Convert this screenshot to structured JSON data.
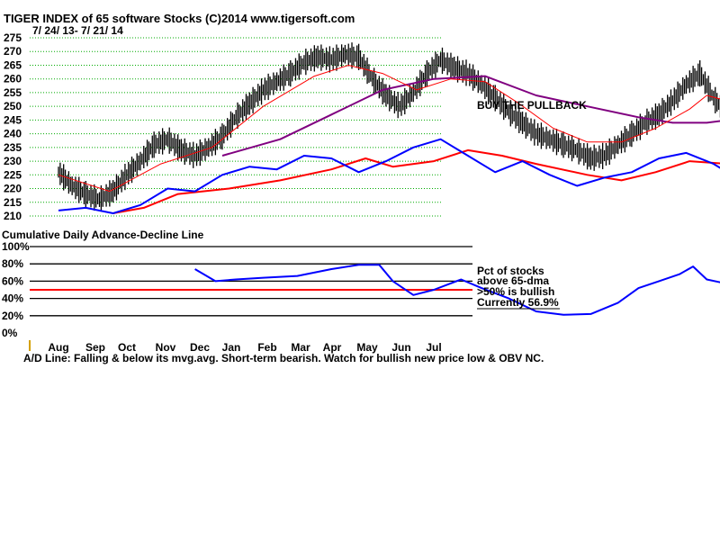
{
  "chart_data": [
    {
      "type": "line",
      "title": "TIGER INDEX of  65 software Stocks  (C)2014  www.tigersoft.com",
      "subtitle": "7/ 24/ 13- 7/ 21/ 14",
      "annotation": "BUY THE PULLBACK",
      "y_ticks": [
        275,
        270,
        265,
        260,
        255,
        250,
        245,
        240,
        235,
        230,
        225,
        220,
        215,
        210
      ],
      "ylim": [
        210,
        275
      ],
      "grid": true,
      "x_months": [
        "Aug",
        "Sep",
        "Oct",
        "Nov",
        "Dec",
        "Jan",
        "Feb",
        "Mar",
        "Apr",
        "May",
        "Jun",
        "Jul"
      ],
      "price_bars_close": [
        {
          "x": 0.0,
          "y": 226
        },
        {
          "x": 0.4,
          "y": 221
        },
        {
          "x": 0.8,
          "y": 218
        },
        {
          "x": 1.2,
          "y": 216
        },
        {
          "x": 1.6,
          "y": 219
        },
        {
          "x": 2.0,
          "y": 225
        },
        {
          "x": 2.4,
          "y": 230
        },
        {
          "x": 2.8,
          "y": 236
        },
        {
          "x": 3.2,
          "y": 238
        },
        {
          "x": 3.6,
          "y": 234
        },
        {
          "x": 4.0,
          "y": 232
        },
        {
          "x": 4.4,
          "y": 235
        },
        {
          "x": 4.8,
          "y": 239
        },
        {
          "x": 5.2,
          "y": 246
        },
        {
          "x": 5.6,
          "y": 251
        },
        {
          "x": 6.0,
          "y": 256
        },
        {
          "x": 6.4,
          "y": 259
        },
        {
          "x": 6.8,
          "y": 262
        },
        {
          "x": 7.2,
          "y": 266
        },
        {
          "x": 7.6,
          "y": 268
        },
        {
          "x": 8.0,
          "y": 267
        },
        {
          "x": 8.4,
          "y": 269
        },
        {
          "x": 8.8,
          "y": 268
        },
        {
          "x": 9.2,
          "y": 260
        },
        {
          "x": 9.6,
          "y": 254
        },
        {
          "x": 10.0,
          "y": 250
        },
        {
          "x": 10.4,
          "y": 255
        },
        {
          "x": 10.8,
          "y": 262
        },
        {
          "x": 11.2,
          "y": 267
        },
        {
          "x": 11.6,
          "y": 264
        },
        {
          "x": 12.0,
          "y": 262
        },
        {
          "x": 12.4,
          "y": 258
        },
        {
          "x": 12.8,
          "y": 253
        },
        {
          "x": 13.2,
          "y": 248
        },
        {
          "x": 13.6,
          "y": 244
        },
        {
          "x": 14.0,
          "y": 240
        },
        {
          "x": 14.4,
          "y": 238
        },
        {
          "x": 14.8,
          "y": 236
        },
        {
          "x": 15.2,
          "y": 234
        },
        {
          "x": 15.6,
          "y": 231
        },
        {
          "x": 16.0,
          "y": 232
        },
        {
          "x": 16.4,
          "y": 236
        },
        {
          "x": 16.8,
          "y": 240
        },
        {
          "x": 17.2,
          "y": 244
        },
        {
          "x": 17.6,
          "y": 247
        },
        {
          "x": 18.0,
          "y": 252
        },
        {
          "x": 18.4,
          "y": 258
        },
        {
          "x": 18.8,
          "y": 262
        },
        {
          "x": 19.2,
          "y": 253
        },
        {
          "x": 19.6,
          "y": 247
        }
      ],
      "price_ma_red": [
        {
          "x": 0.0,
          "y": 225
        },
        {
          "x": 1.5,
          "y": 219
        },
        {
          "x": 3.0,
          "y": 229
        },
        {
          "x": 4.5,
          "y": 235
        },
        {
          "x": 6.0,
          "y": 250
        },
        {
          "x": 7.5,
          "y": 261
        },
        {
          "x": 8.5,
          "y": 265
        },
        {
          "x": 9.5,
          "y": 262
        },
        {
          "x": 10.5,
          "y": 256
        },
        {
          "x": 11.5,
          "y": 260
        },
        {
          "x": 12.5,
          "y": 259
        },
        {
          "x": 13.5,
          "y": 251
        },
        {
          "x": 14.5,
          "y": 242
        },
        {
          "x": 15.5,
          "y": 237
        },
        {
          "x": 16.5,
          "y": 237
        },
        {
          "x": 17.5,
          "y": 242
        },
        {
          "x": 18.5,
          "y": 249
        },
        {
          "x": 19.0,
          "y": 254
        },
        {
          "x": 19.6,
          "y": 252
        }
      ],
      "price_ma_purple": [
        {
          "x": 4.8,
          "y": 232
        },
        {
          "x": 6.5,
          "y": 238
        },
        {
          "x": 8.0,
          "y": 247
        },
        {
          "x": 9.5,
          "y": 256
        },
        {
          "x": 11.0,
          "y": 260
        },
        {
          "x": 12.5,
          "y": 261
        },
        {
          "x": 14.0,
          "y": 254
        },
        {
          "x": 15.5,
          "y": 250
        },
        {
          "x": 17.0,
          "y": 246
        },
        {
          "x": 18.0,
          "y": 244
        },
        {
          "x": 19.0,
          "y": 244
        },
        {
          "x": 19.6,
          "y": 245
        }
      ],
      "ad_line_blue": [
        {
          "x": 0.0,
          "y": 212
        },
        {
          "x": 0.8,
          "y": 213
        },
        {
          "x": 1.6,
          "y": 211
        },
        {
          "x": 2.4,
          "y": 214
        },
        {
          "x": 3.2,
          "y": 220
        },
        {
          "x": 4.0,
          "y": 219
        },
        {
          "x": 4.8,
          "y": 225
        },
        {
          "x": 5.6,
          "y": 228
        },
        {
          "x": 6.4,
          "y": 227
        },
        {
          "x": 7.2,
          "y": 232
        },
        {
          "x": 8.0,
          "y": 231
        },
        {
          "x": 8.8,
          "y": 226
        },
        {
          "x": 9.6,
          "y": 230
        },
        {
          "x": 10.4,
          "y": 235
        },
        {
          "x": 11.2,
          "y": 238
        },
        {
          "x": 12.0,
          "y": 232
        },
        {
          "x": 12.8,
          "y": 226
        },
        {
          "x": 13.6,
          "y": 230
        },
        {
          "x": 14.4,
          "y": 225
        },
        {
          "x": 15.2,
          "y": 221
        },
        {
          "x": 16.0,
          "y": 224
        },
        {
          "x": 16.8,
          "y": 226
        },
        {
          "x": 17.6,
          "y": 231
        },
        {
          "x": 18.4,
          "y": 233
        },
        {
          "x": 19.2,
          "y": 229
        },
        {
          "x": 19.6,
          "y": 226
        }
      ],
      "ad_ma_red": [
        {
          "x": 1.6,
          "y": 211
        },
        {
          "x": 2.5,
          "y": 213
        },
        {
          "x": 3.5,
          "y": 218
        },
        {
          "x": 5.0,
          "y": 220
        },
        {
          "x": 6.5,
          "y": 223
        },
        {
          "x": 8.0,
          "y": 227
        },
        {
          "x": 9.0,
          "y": 231
        },
        {
          "x": 9.8,
          "y": 228
        },
        {
          "x": 11.0,
          "y": 230
        },
        {
          "x": 12.0,
          "y": 234
        },
        {
          "x": 13.0,
          "y": 232
        },
        {
          "x": 14.0,
          "y": 229
        },
        {
          "x": 15.5,
          "y": 225
        },
        {
          "x": 16.5,
          "y": 223
        },
        {
          "x": 17.5,
          "y": 226
        },
        {
          "x": 18.5,
          "y": 230
        },
        {
          "x": 19.6,
          "y": 229
        }
      ]
    },
    {
      "type": "line",
      "title": "Cumulative Daily Advance-Decline Line",
      "y_ticks": [
        "100%",
        "80%",
        "60%",
        "40%",
        "20%",
        "0%"
      ],
      "ylim": [
        0,
        100
      ],
      "threshold": 50,
      "x_months": [
        "Aug",
        "Sep",
        "Oct",
        "Nov",
        "Dec",
        "Jan",
        "Feb",
        "Mar",
        "Apr",
        "May",
        "Jun",
        "Jul"
      ],
      "legend_lines": [
        "Pct of stocks",
        "above 65-dma",
        ">50% is bullish",
        "Currently  56.9%"
      ],
      "series": [
        {
          "points": [
            {
              "x": 4.0,
              "y": 74
            },
            {
              "x": 4.6,
              "y": 60
            },
            {
              "x": 5.2,
              "y": 62
            },
            {
              "x": 6.0,
              "y": 64
            },
            {
              "x": 7.0,
              "y": 66
            },
            {
              "x": 8.0,
              "y": 74
            },
            {
              "x": 8.8,
              "y": 79
            },
            {
              "x": 9.4,
              "y": 79
            },
            {
              "x": 9.8,
              "y": 60
            },
            {
              "x": 10.4,
              "y": 44
            },
            {
              "x": 11.0,
              "y": 50
            },
            {
              "x": 11.8,
              "y": 62
            },
            {
              "x": 12.4,
              "y": 52
            },
            {
              "x": 13.2,
              "y": 40
            },
            {
              "x": 14.0,
              "y": 25
            },
            {
              "x": 14.8,
              "y": 21
            },
            {
              "x": 15.6,
              "y": 22
            },
            {
              "x": 16.4,
              "y": 35
            },
            {
              "x": 17.0,
              "y": 52
            },
            {
              "x": 17.6,
              "y": 60
            },
            {
              "x": 18.2,
              "y": 68
            },
            {
              "x": 18.6,
              "y": 77
            },
            {
              "x": 19.0,
              "y": 62
            },
            {
              "x": 19.6,
              "y": 57
            }
          ]
        }
      ]
    }
  ],
  "footer_text": "A/D Line: Falling & below its mvg.avg. Short-term bearish. Watch for bullish new price low & OBV NC.",
  "colors": {
    "grid": "#00aa00",
    "price": "#000000",
    "ma_red": "#ff0000",
    "ma_purple": "#800080",
    "ad_blue": "#0000ff",
    "threshold": "#ff0000"
  }
}
